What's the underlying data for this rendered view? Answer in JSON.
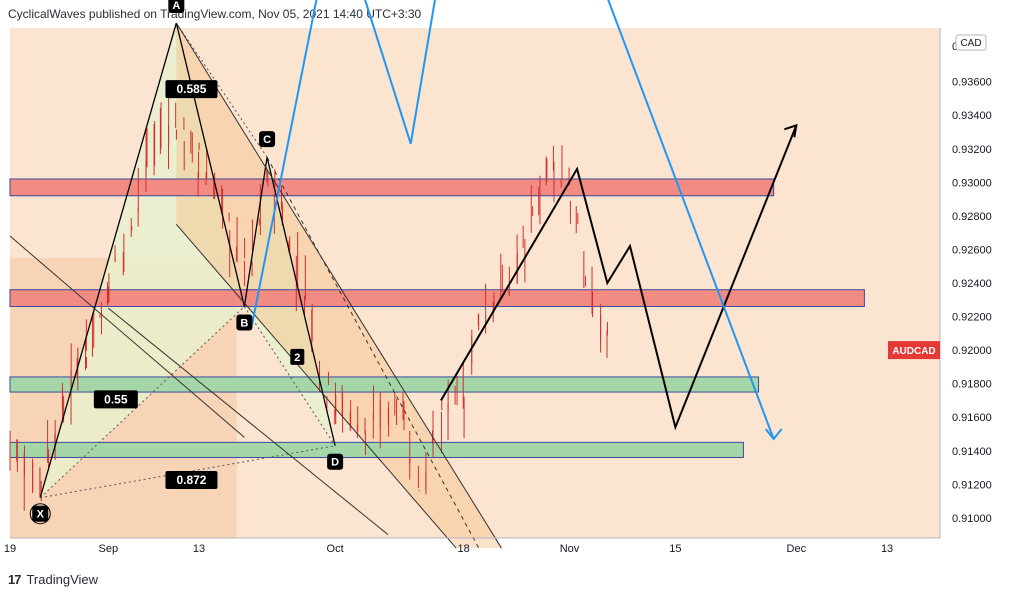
{
  "header": {
    "text": "CyclicalWaves published on TradingView.com, Nov 05, 2021 14:40 UTC+3:30"
  },
  "footer": {
    "logo": "17",
    "brand": "TradingView"
  },
  "colors": {
    "background": "#fbe4d0",
    "candle": "#d32f2f",
    "zone_red": "#f28b82",
    "zone_green": "#a5d6a7",
    "pattern": "#000000",
    "projection_blue": "#2196f3",
    "symbol_badge": "#e53935"
  },
  "chart_data": {
    "type": "candlestick",
    "symbol": "AUDCAD",
    "currency": "CAD",
    "y_axis_top_label": "0",
    "ylim": [
      0.9088,
      0.9392
    ],
    "y_ticks": [
      0.936,
      0.934,
      0.932,
      0.93,
      0.928,
      0.926,
      0.924,
      0.922,
      0.92,
      0.918,
      0.916,
      0.914,
      0.912,
      0.91
    ],
    "y_tick_labels": [
      "0.93600",
      "0.93400",
      "0.93200",
      "0.93000",
      "0.92800",
      "0.92600",
      "0.92400",
      "0.92200",
      "0.92000",
      "0.91800",
      "0.91600",
      "0.91400",
      "0.91200",
      "0.91000"
    ],
    "x_ticks": [
      {
        "label": "19",
        "x": "2021-08-19"
      },
      {
        "label": "Sep",
        "x": "2021-09-01"
      },
      {
        "label": "13",
        "x": "2021-09-13"
      },
      {
        "label": "Oct",
        "x": "2021-10-01"
      },
      {
        "label": "18",
        "x": "2021-10-18"
      },
      {
        "label": "Nov",
        "x": "2021-11-01"
      },
      {
        "label": "15",
        "x": "2021-11-15"
      },
      {
        "label": "Dec",
        "x": "2021-12-01"
      },
      {
        "label": "13",
        "x": "2021-12-13"
      }
    ],
    "xlim": [
      "2021-08-19",
      "2021-12-20"
    ],
    "price_path": [
      [
        "2021-08-19",
        0.915
      ],
      [
        "2021-08-21",
        0.913
      ],
      [
        "2021-08-23",
        0.912
      ],
      [
        "2021-08-26",
        0.916
      ],
      [
        "2021-08-29",
        0.92
      ],
      [
        "2021-09-01",
        0.923
      ],
      [
        "2021-09-04",
        0.927
      ],
      [
        "2021-09-06",
        0.931
      ],
      [
        "2021-09-09",
        0.9335
      ],
      [
        "2021-09-11",
        0.933
      ],
      [
        "2021-09-13",
        0.9315
      ],
      [
        "2021-09-16",
        0.929
      ],
      [
        "2021-09-18",
        0.926
      ],
      [
        "2021-09-20",
        0.925
      ],
      [
        "2021-09-22",
        0.93
      ],
      [
        "2021-09-24",
        0.929
      ],
      [
        "2021-09-27",
        0.924
      ],
      [
        "2021-09-29",
        0.92
      ],
      [
        "2021-10-01",
        0.917
      ],
      [
        "2021-10-04",
        0.916
      ],
      [
        "2021-10-06",
        0.915
      ],
      [
        "2021-10-08",
        0.9165
      ],
      [
        "2021-10-10",
        0.917
      ],
      [
        "2021-10-12",
        0.912
      ],
      [
        "2021-10-14",
        0.914
      ],
      [
        "2021-10-16",
        0.9165
      ],
      [
        "2021-10-18",
        0.9165
      ],
      [
        "2021-10-20",
        0.9215
      ],
      [
        "2021-10-22",
        0.9235
      ],
      [
        "2021-10-24",
        0.924
      ],
      [
        "2021-10-26",
        0.9255
      ],
      [
        "2021-10-28",
        0.929
      ],
      [
        "2021-10-30",
        0.9315
      ],
      [
        "2021-11-01",
        0.93
      ],
      [
        "2021-11-03",
        0.925
      ],
      [
        "2021-11-05",
        0.922
      ],
      [
        "2021-11-07",
        0.92
      ]
    ],
    "zones": [
      {
        "color": "red",
        "from": 0.9302,
        "to": 0.9292,
        "start": "2021-08-19",
        "end": "2021-11-28"
      },
      {
        "color": "red",
        "from": 0.9236,
        "to": 0.9226,
        "start": "2021-08-19",
        "end": "2021-12-10"
      },
      {
        "color": "green",
        "from": 0.9184,
        "to": 0.9175,
        "start": "2021-08-19",
        "end": "2021-11-26"
      },
      {
        "color": "green",
        "from": 0.9145,
        "to": 0.9136,
        "start": "2021-08-19",
        "end": "2021-11-24"
      }
    ],
    "harmonic_points": [
      {
        "label": "X",
        "x": "2021-08-23",
        "y": 0.9112
      },
      {
        "label": "A",
        "x": "2021-09-10",
        "y": 0.9395
      },
      {
        "label": "B",
        "x": "2021-09-19",
        "y": 0.9226
      },
      {
        "label": "C",
        "x": "2021-09-22",
        "y": 0.9315
      },
      {
        "label": "D",
        "x": "2021-10-01",
        "y": 0.9143
      }
    ],
    "ratio_labels": [
      "0.585",
      "0.55",
      "0.872"
    ],
    "wave_label": "2",
    "black_projection": [
      [
        "2021-10-15",
        0.917
      ],
      [
        "2021-11-02",
        0.9308
      ],
      [
        "2021-11-06",
        0.924
      ],
      [
        "2021-11-09",
        0.9262
      ],
      [
        "2021-11-15",
        0.9154
      ],
      [
        "2021-12-01",
        0.9334
      ]
    ],
    "blue_projection": [
      [
        "2021-09-20",
        0.9215
      ],
      [
        "2021-10-01",
        0.9465
      ],
      [
        "2021-10-11",
        0.9323
      ],
      [
        "2021-10-15",
        0.943
      ],
      [
        "2021-11-01",
        0.947
      ],
      [
        "2021-11-28",
        0.9147
      ]
    ]
  }
}
